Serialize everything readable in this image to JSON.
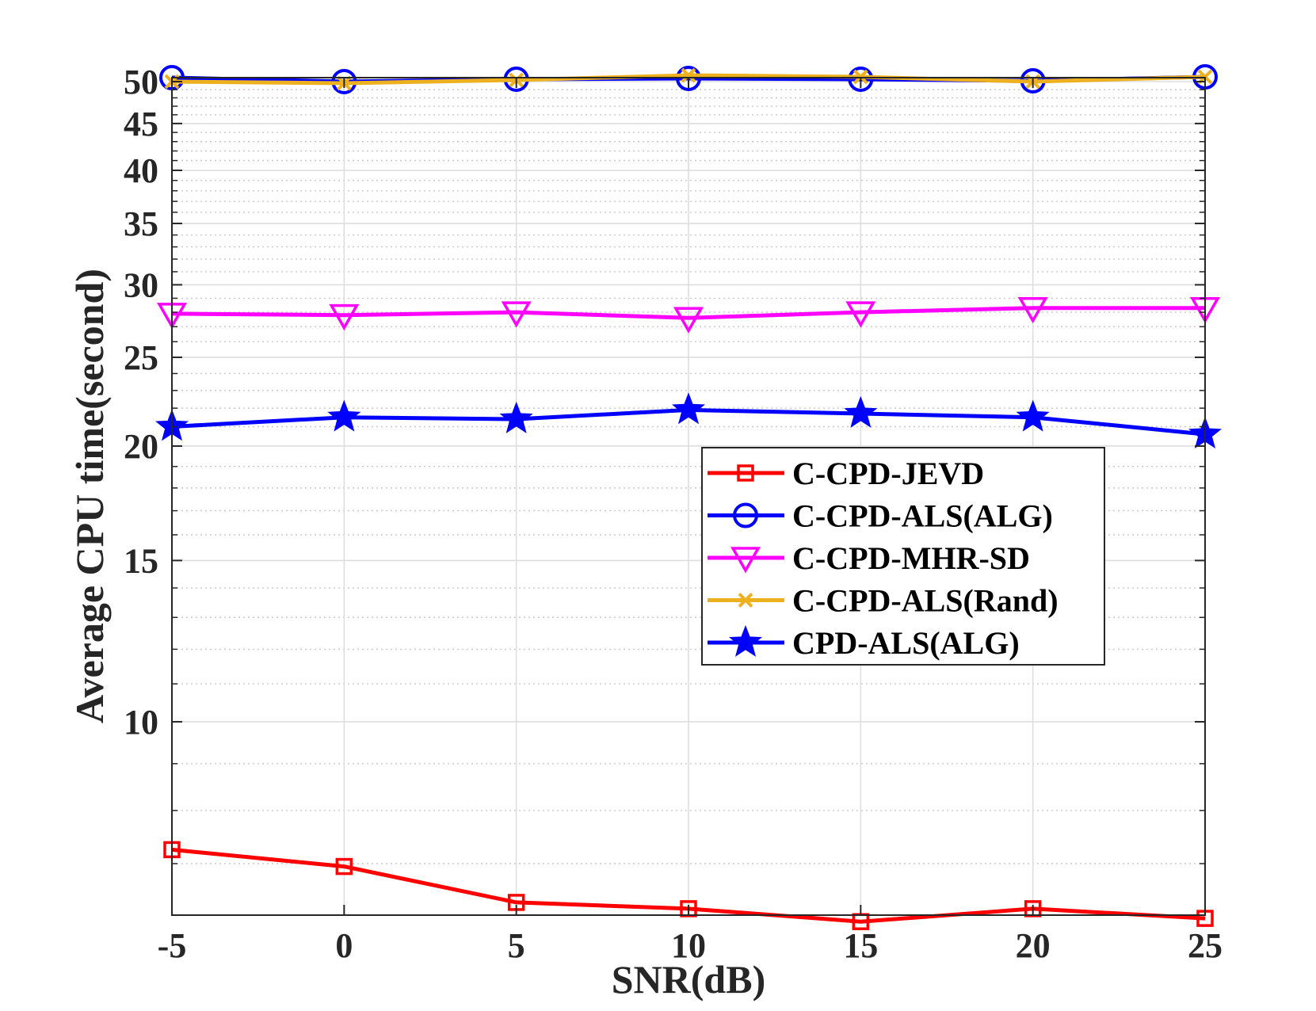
{
  "chart_data": {
    "type": "line",
    "title": "",
    "xlabel": "SNR(dB)",
    "ylabel": "Average CPU time(second)",
    "yscale": "log",
    "x": [
      -5,
      0,
      5,
      10,
      15,
      20,
      25
    ],
    "xticks": [
      "-5",
      "0",
      "5",
      "10",
      "15",
      "20",
      "25"
    ],
    "xlim": [
      -5,
      25
    ],
    "ylim": [
      6.15,
      50.5
    ],
    "yticks": [
      {
        "value": 10,
        "label": "10"
      },
      {
        "value": 15,
        "label": "15"
      },
      {
        "value": 20,
        "label": "20"
      },
      {
        "value": 25,
        "label": "25"
      },
      {
        "value": 30,
        "label": "30"
      },
      {
        "value": 35,
        "label": "35"
      },
      {
        "value": 40,
        "label": "40"
      },
      {
        "value": 45,
        "label": "45"
      },
      {
        "value": 50,
        "label": "50"
      }
    ],
    "minor_yticks": [
      7,
      8,
      9,
      11,
      12,
      13,
      14,
      16,
      17,
      18,
      19,
      21,
      22,
      23,
      24,
      26,
      27,
      28,
      29,
      31,
      32,
      33,
      34,
      36,
      37,
      38,
      39,
      41,
      42,
      43,
      44,
      46,
      47,
      48,
      49
    ],
    "grid": true,
    "legend_position": "center-right",
    "series": [
      {
        "name": "C-CPD-JEVD",
        "color": "#ff0000",
        "marker": "square",
        "values": [
          7.25,
          6.95,
          6.35,
          6.25,
          6.05,
          6.25,
          6.1
        ]
      },
      {
        "name": "C-CPD-ALS(ALG)",
        "color": "#0000ff",
        "marker": "circle",
        "values": [
          50.5,
          50.0,
          50.3,
          50.4,
          50.3,
          50.1,
          50.6
        ]
      },
      {
        "name": "C-CPD-MHR-SD",
        "color": "#ff00ff",
        "marker": "triangle-down",
        "values": [
          27.9,
          27.8,
          28.0,
          27.6,
          28.0,
          28.3,
          28.3
        ]
      },
      {
        "name": "C-CPD-ALS(Rand)",
        "color": "#edb120",
        "marker": "x",
        "values": [
          50.0,
          49.8,
          50.2,
          50.8,
          50.6,
          50.0,
          50.6
        ]
      },
      {
        "name": "CPD-ALS(ALG)",
        "color": "#0000ff",
        "marker": "star",
        "values": [
          21.0,
          21.5,
          21.4,
          21.9,
          21.7,
          21.5,
          20.6
        ]
      }
    ]
  }
}
